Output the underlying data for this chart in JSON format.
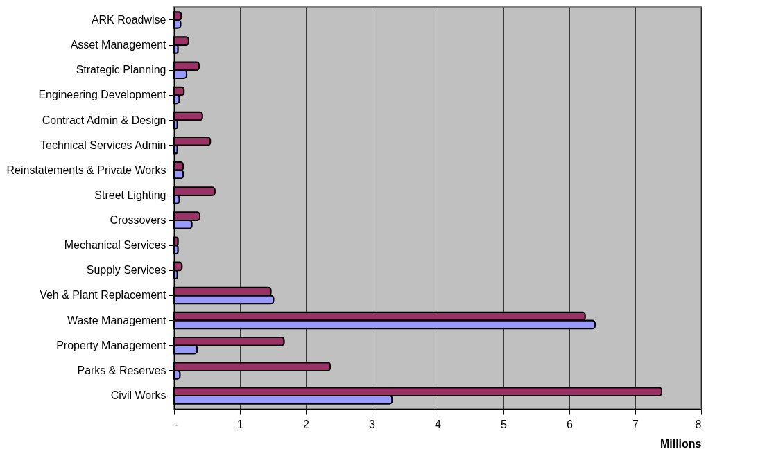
{
  "chart_data": {
    "type": "bar",
    "orientation": "horizontal",
    "xlabel": "Millions",
    "categories": [
      "ARK Roadwise",
      "Asset Management",
      "Strategic Planning",
      "Engineering Development",
      "Contract Admin & Design",
      "Technical Services Admin",
      "Reinstatements & Private Works",
      "Street Lighting",
      "Crossovers",
      "Mechanical Services",
      "Supply Services",
      "Veh & Plant Replacement",
      "Waste Management",
      "Property Management",
      "Parks & Reserves",
      "Civil Works"
    ],
    "series": [
      {
        "color": "#993366",
        "values": [
          0.11,
          0.22,
          0.38,
          0.15,
          0.43,
          0.55,
          0.14,
          0.62,
          0.39,
          0.06,
          0.12,
          1.47,
          6.24,
          1.67,
          2.37,
          7.4
        ]
      },
      {
        "color": "#9999ff",
        "values": [
          0.1,
          0.06,
          0.19,
          0.08,
          0.05,
          0.05,
          0.14,
          0.08,
          0.27,
          0.06,
          0.05,
          1.51,
          6.39,
          0.35,
          0.09,
          3.31
        ]
      }
    ],
    "xlim": [
      0,
      8
    ],
    "xticks": [
      {
        "value": 0,
        "label": "-"
      },
      1,
      2,
      3,
      4,
      5,
      6,
      7,
      8
    ],
    "grid": "x",
    "legend": false
  }
}
